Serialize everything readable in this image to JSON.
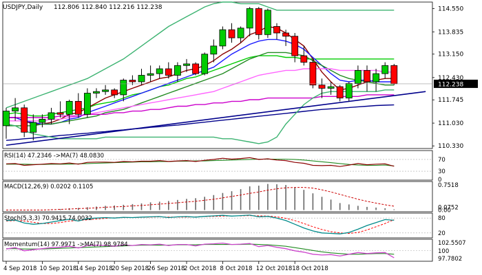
{
  "header": {
    "title": "USDJPY,Daily",
    "ohlc": "112.806 112.840 112.216 112.238"
  },
  "chart_data": {
    "type": "candlestick",
    "symbol": "USDJPY",
    "timeframe": "Daily",
    "last_price": "112.238",
    "ylim": [
      110.25,
      114.75
    ],
    "y_ticks": [
      "114.550",
      "113.835",
      "113.150",
      "112.430",
      "111.745",
      "111.030",
      "110.330"
    ],
    "x_ticks": [
      "4 Sep 2018",
      "10 Sep 2018",
      "14 Sep 2018",
      "20 Sep 2018",
      "26 Sep 2018",
      "2 Oct 2018",
      "8 Oct 2018",
      "12 Oct 2018",
      "18 Oct 2018"
    ],
    "candles": [
      {
        "o": 110.95,
        "h": 111.5,
        "l": 110.55,
        "c": 111.4
      },
      {
        "o": 111.4,
        "h": 111.8,
        "l": 111.1,
        "c": 111.5
      },
      {
        "o": 111.5,
        "h": 111.6,
        "l": 110.6,
        "c": 110.75
      },
      {
        "o": 110.75,
        "h": 111.3,
        "l": 110.5,
        "c": 111.05
      },
      {
        "o": 111.05,
        "h": 111.3,
        "l": 110.9,
        "c": 111.15
      },
      {
        "o": 111.15,
        "h": 111.5,
        "l": 111.0,
        "c": 111.35
      },
      {
        "o": 111.35,
        "h": 111.7,
        "l": 111.2,
        "c": 111.3
      },
      {
        "o": 111.3,
        "h": 111.75,
        "l": 111.0,
        "c": 111.7
      },
      {
        "o": 111.7,
        "h": 111.95,
        "l": 111.2,
        "c": 111.3
      },
      {
        "o": 111.3,
        "h": 112.1,
        "l": 111.2,
        "c": 111.95
      },
      {
        "o": 111.95,
        "h": 112.1,
        "l": 111.8,
        "c": 112.0
      },
      {
        "o": 112.0,
        "h": 112.2,
        "l": 111.9,
        "c": 112.05
      },
      {
        "o": 112.05,
        "h": 112.1,
        "l": 111.8,
        "c": 111.9
      },
      {
        "o": 111.9,
        "h": 112.4,
        "l": 111.7,
        "c": 112.35
      },
      {
        "o": 112.35,
        "h": 112.5,
        "l": 112.2,
        "c": 112.3
      },
      {
        "o": 112.3,
        "h": 112.7,
        "l": 112.2,
        "c": 112.5
      },
      {
        "o": 112.5,
        "h": 112.8,
        "l": 112.3,
        "c": 112.55
      },
      {
        "o": 112.55,
        "h": 112.8,
        "l": 112.4,
        "c": 112.7
      },
      {
        "o": 112.7,
        "h": 112.9,
        "l": 112.4,
        "c": 112.5
      },
      {
        "o": 112.5,
        "h": 112.9,
        "l": 112.3,
        "c": 112.8
      },
      {
        "o": 112.8,
        "h": 113.0,
        "l": 112.6,
        "c": 112.85
      },
      {
        "o": 112.85,
        "h": 112.9,
        "l": 112.5,
        "c": 112.55
      },
      {
        "o": 112.55,
        "h": 113.2,
        "l": 112.5,
        "c": 113.15
      },
      {
        "o": 113.15,
        "h": 113.6,
        "l": 112.9,
        "c": 113.4
      },
      {
        "o": 113.4,
        "h": 114.0,
        "l": 113.3,
        "c": 113.9
      },
      {
        "o": 113.9,
        "h": 114.1,
        "l": 113.5,
        "c": 113.65
      },
      {
        "o": 113.65,
        "h": 114.0,
        "l": 113.5,
        "c": 113.95
      },
      {
        "o": 113.95,
        "h": 114.6,
        "l": 113.7,
        "c": 114.55
      },
      {
        "o": 114.55,
        "h": 114.6,
        "l": 113.6,
        "c": 113.75
      },
      {
        "o": 113.75,
        "h": 114.55,
        "l": 113.65,
        "c": 114.5
      },
      {
        "o": 114.0,
        "h": 114.1,
        "l": 113.6,
        "c": 113.8
      },
      {
        "o": 113.8,
        "h": 113.9,
        "l": 113.4,
        "c": 113.7
      },
      {
        "o": 113.7,
        "h": 113.8,
        "l": 112.9,
        "c": 113.1
      },
      {
        "o": 113.1,
        "h": 113.4,
        "l": 112.8,
        "c": 112.9
      },
      {
        "o": 112.9,
        "h": 113.0,
        "l": 112.1,
        "c": 112.2
      },
      {
        "o": 112.2,
        "h": 112.4,
        "l": 111.8,
        "c": 112.1
      },
      {
        "o": 112.1,
        "h": 112.3,
        "l": 111.9,
        "c": 112.15
      },
      {
        "o": 112.15,
        "h": 112.2,
        "l": 111.7,
        "c": 111.8
      },
      {
        "o": 111.8,
        "h": 112.3,
        "l": 111.7,
        "c": 112.25
      },
      {
        "o": 112.25,
        "h": 112.8,
        "l": 112.1,
        "c": 112.65
      },
      {
        "o": 112.65,
        "h": 112.8,
        "l": 112.0,
        "c": 112.3
      },
      {
        "o": 112.3,
        "h": 112.7,
        "l": 112.0,
        "c": 112.55
      },
      {
        "o": 112.55,
        "h": 112.9,
        "l": 112.4,
        "c": 112.8
      },
      {
        "o": 112.8,
        "h": 112.85,
        "l": 112.2,
        "c": 112.24
      }
    ],
    "overlays": [
      {
        "color": "#00cc00",
        "values": [
          111.3,
          111.35,
          111.3,
          111.25,
          111.25,
          111.3,
          111.35,
          111.4,
          111.45,
          111.5,
          111.6,
          111.65,
          111.7,
          111.8,
          111.9,
          111.95,
          112.05,
          112.15,
          112.2,
          112.3,
          112.4,
          112.45,
          112.55,
          112.65,
          112.75,
          112.85,
          112.95,
          113.05,
          113.1,
          113.1,
          113.1,
          113.05,
          113.05,
          113.0,
          113.0,
          113.0,
          113.0,
          113.0,
          113.0,
          113.0,
          113.0,
          113.0,
          113.0,
          113.0
        ]
      },
      {
        "color": "#8b0000",
        "values": [
          111.2,
          111.2,
          111.1,
          111.0,
          111.0,
          111.05,
          111.15,
          111.3,
          111.35,
          111.5,
          111.65,
          111.8,
          111.9,
          112.0,
          112.1,
          112.2,
          112.3,
          112.4,
          112.45,
          112.55,
          112.65,
          112.7,
          112.8,
          112.95,
          113.15,
          113.3,
          113.5,
          113.75,
          113.85,
          114.0,
          113.95,
          113.8,
          113.6,
          113.4,
          113.0,
          112.6,
          112.3,
          112.05,
          112.1,
          112.2,
          112.3,
          112.35,
          112.4,
          112.4
        ]
      },
      {
        "color": "#1a1aff",
        "values": [
          111.2,
          111.2,
          111.1,
          111.05,
          111.0,
          111.0,
          111.05,
          111.15,
          111.2,
          111.35,
          111.45,
          111.55,
          111.65,
          111.75,
          111.85,
          111.95,
          112.05,
          112.15,
          112.25,
          112.35,
          112.45,
          112.55,
          112.65,
          112.75,
          112.95,
          113.15,
          113.3,
          113.45,
          113.55,
          113.6,
          113.6,
          113.55,
          113.45,
          113.3,
          113.05,
          112.8,
          112.55,
          112.35,
          112.3,
          112.35,
          112.35,
          112.3,
          112.3,
          112.3
        ]
      },
      {
        "color": "#228b22",
        "values": [
          110.95,
          110.95,
          110.95,
          110.95,
          111.0,
          111.0,
          111.05,
          111.1,
          111.15,
          111.2,
          111.25,
          111.35,
          111.4,
          111.45,
          111.55,
          111.65,
          111.75,
          111.85,
          111.95,
          112.05,
          112.15,
          112.25,
          112.35,
          112.45,
          112.55,
          112.7,
          112.85,
          113.0,
          113.1,
          113.2,
          113.2,
          113.2,
          113.15,
          113.1,
          112.95,
          112.8,
          112.65,
          112.5,
          112.4,
          112.35,
          112.3,
          112.25,
          112.2,
          112.2
        ]
      },
      {
        "color": "#ff66ff",
        "values": [
          111.1,
          111.1,
          111.1,
          111.1,
          111.1,
          111.15,
          111.15,
          111.2,
          111.25,
          111.3,
          111.35,
          111.4,
          111.45,
          111.5,
          111.55,
          111.6,
          111.65,
          111.7,
          111.75,
          111.8,
          111.85,
          111.9,
          111.95,
          112.0,
          112.1,
          112.2,
          112.3,
          112.4,
          112.5,
          112.55,
          112.6,
          112.65,
          112.65,
          112.7,
          112.7,
          112.7,
          112.7,
          112.65,
          112.65,
          112.65,
          112.65,
          112.65,
          112.6,
          112.6
        ]
      },
      {
        "color": "#cc00cc",
        "values": [
          111.2,
          111.2,
          111.2,
          111.2,
          111.2,
          111.2,
          111.25,
          111.25,
          111.25,
          111.3,
          111.3,
          111.3,
          111.35,
          111.35,
          111.4,
          111.4,
          111.45,
          111.45,
          111.5,
          111.55,
          111.55,
          111.6,
          111.6,
          111.65,
          111.65,
          111.7,
          111.7,
          111.75,
          111.75,
          111.8,
          111.8,
          111.8,
          111.8,
          111.8,
          111.8,
          111.85,
          111.85,
          111.85,
          111.85,
          111.85,
          111.9,
          111.9,
          111.9,
          111.9
        ]
      },
      {
        "color": "#00008b",
        "values": [
          110.5,
          110.52,
          110.55,
          110.57,
          110.6,
          110.62,
          110.65,
          110.67,
          110.7,
          110.72,
          110.75,
          110.77,
          110.8,
          110.82,
          110.85,
          110.87,
          110.9,
          110.92,
          110.95,
          110.97,
          111.0,
          111.03,
          111.06,
          111.09,
          111.12,
          111.15,
          111.18,
          111.21,
          111.24,
          111.27,
          111.3,
          111.33,
          111.36,
          111.39,
          111.42,
          111.45,
          111.47,
          111.49,
          111.51,
          111.53,
          111.55,
          111.57,
          111.58,
          111.59
        ]
      },
      {
        "color": "#3cb371",
        "values": [
          111.0,
          110.95,
          110.8,
          110.7,
          110.65,
          110.6,
          110.55,
          110.55,
          110.55,
          110.55,
          110.55,
          110.6,
          110.6,
          110.6,
          110.6,
          110.6,
          110.6,
          110.6,
          110.6,
          110.6,
          110.6,
          110.6,
          110.6,
          110.6,
          110.55,
          110.55,
          110.5,
          110.45,
          110.4,
          110.45,
          110.6,
          111.0,
          111.3,
          111.6,
          111.8,
          111.95,
          112.0,
          112.0,
          112.0,
          112.0,
          112.0,
          112.0,
          112.05,
          112.05
        ]
      },
      {
        "color": "#3cb371",
        "values": [
          111.5,
          111.6,
          111.7,
          111.8,
          111.9,
          112.0,
          112.1,
          112.2,
          112.3,
          112.4,
          112.55,
          112.7,
          112.85,
          113.0,
          113.2,
          113.4,
          113.6,
          113.8,
          114.0,
          114.15,
          114.3,
          114.45,
          114.6,
          114.7,
          114.75,
          114.75,
          114.7,
          114.7,
          114.7,
          114.6,
          114.5,
          114.5,
          114.5,
          114.5,
          114.5,
          114.5,
          114.5,
          114.5,
          114.5,
          114.5,
          114.5,
          114.5,
          114.5,
          114.5
        ]
      }
    ],
    "trendline": {
      "color": "#00008b",
      "from": [
        0,
        110.35
      ],
      "to": [
        46.5,
        112.0
      ]
    },
    "indicators": {
      "rsi": {
        "label": "RSI(14) 47.2346 ->MA(7) 48.0830",
        "ylim": [
          0,
          100
        ],
        "ticks": [
          "70",
          "30",
          "0"
        ],
        "rsi_values": [
          55,
          56,
          50,
          52,
          54,
          56,
          55,
          58,
          54,
          60,
          61,
          61,
          60,
          63,
          62,
          64,
          64,
          66,
          63,
          65,
          66,
          63,
          67,
          70,
          74,
          71,
          73,
          76,
          70,
          72,
          68,
          66,
          60,
          57,
          50,
          49,
          50,
          46,
          51,
          56,
          52,
          54,
          55,
          47
        ],
        "ma_values": [
          54,
          54,
          54,
          53,
          53,
          54,
          54,
          54,
          55,
          56,
          57,
          58,
          59,
          60,
          61,
          62,
          62,
          63,
          63,
          64,
          64,
          65,
          65,
          66,
          67,
          68,
          69,
          70,
          71,
          71,
          71,
          71,
          70,
          68,
          65,
          62,
          59,
          56,
          53,
          51,
          50,
          50,
          51,
          48
        ]
      },
      "macd": {
        "label": "MACD(12,26,9) 0.0202 0.1105",
        "ylim": [
          -0.05,
          0.82
        ],
        "ticks": [
          "0.7518",
          "0.0752",
          "0.00"
        ],
        "histogram": [
          0.0,
          0.0,
          0.0,
          0.0,
          0.0,
          0.02,
          0.03,
          0.05,
          0.06,
          0.08,
          0.1,
          0.12,
          0.13,
          0.15,
          0.17,
          0.19,
          0.22,
          0.24,
          0.26,
          0.29,
          0.32,
          0.34,
          0.38,
          0.43,
          0.49,
          0.54,
          0.6,
          0.68,
          0.7,
          0.75,
          0.74,
          0.72,
          0.65,
          0.58,
          0.48,
          0.38,
          0.3,
          0.2,
          0.16,
          0.12,
          0.09,
          0.07,
          0.05,
          0.02
        ],
        "signal": [
          0.0,
          0.0,
          0.0,
          0.0,
          0.0,
          0.01,
          0.02,
          0.03,
          0.04,
          0.05,
          0.06,
          0.08,
          0.09,
          0.1,
          0.12,
          0.13,
          0.15,
          0.17,
          0.19,
          0.21,
          0.23,
          0.25,
          0.28,
          0.31,
          0.35,
          0.39,
          0.43,
          0.48,
          0.52,
          0.57,
          0.61,
          0.64,
          0.65,
          0.65,
          0.63,
          0.58,
          0.52,
          0.45,
          0.38,
          0.31,
          0.25,
          0.2,
          0.15,
          0.11
        ]
      },
      "stoch": {
        "label": "Stoch(5,3,3) 70.9415 74.0032",
        "ylim": [
          0,
          100
        ],
        "ticks": [
          "80",
          "20"
        ],
        "k_values": [
          70,
          72,
          60,
          55,
          58,
          64,
          70,
          75,
          68,
          78,
          80,
          82,
          80,
          83,
          82,
          84,
          85,
          86,
          82,
          85,
          86,
          84,
          87,
          89,
          91,
          88,
          90,
          92,
          85,
          87,
          80,
          70,
          55,
          40,
          28,
          20,
          18,
          16,
          22,
          35,
          50,
          62,
          74,
          71
        ],
        "d_values": [
          68,
          70,
          68,
          63,
          58,
          58,
          62,
          68,
          70,
          73,
          76,
          79,
          81,
          82,
          82,
          83,
          84,
          85,
          84,
          84,
          84,
          85,
          86,
          87,
          88,
          89,
          89,
          90,
          89,
          88,
          85,
          79,
          70,
          58,
          45,
          34,
          25,
          20,
          18,
          22,
          32,
          45,
          58,
          74
        ]
      },
      "momentum": {
        "label": "Momentum(14) 97.9971 ->MA(7) 98.9784",
        "ylim": [
          97.0,
          103.3
        ],
        "ticks": [
          "102.5507",
          "100",
          "97.7802"
        ],
        "mom_values": [
          100.5,
          100.9,
          100.0,
          100.3,
          100.6,
          100.9,
          101.0,
          101.3,
          100.8,
          101.5,
          101.6,
          101.5,
          101.3,
          101.7,
          101.5,
          101.8,
          101.7,
          101.9,
          101.5,
          101.8,
          101.8,
          101.4,
          101.9,
          102.0,
          102.2,
          101.8,
          101.9,
          102.1,
          101.2,
          101.5,
          101.0,
          100.6,
          100.0,
          99.6,
          99.0,
          98.8,
          98.9,
          98.5,
          99.0,
          99.5,
          99.2,
          99.4,
          99.5,
          98.0
        ],
        "ma_values": [
          100.6,
          100.6,
          100.5,
          100.5,
          100.5,
          100.6,
          100.7,
          100.8,
          100.9,
          101.0,
          101.1,
          101.2,
          101.3,
          101.4,
          101.5,
          101.6,
          101.6,
          101.6,
          101.6,
          101.7,
          101.7,
          101.7,
          101.8,
          101.8,
          101.8,
          101.8,
          101.8,
          101.9,
          101.8,
          101.7,
          101.5,
          101.3,
          100.9,
          100.5,
          100.1,
          99.7,
          99.4,
          99.2,
          99.0,
          99.0,
          99.1,
          99.2,
          99.2,
          99.0
        ]
      }
    }
  },
  "colors": {
    "up": "#00cc00",
    "down": "#ff0000",
    "outline": "#000000",
    "price_tag_bg": "#000000",
    "price_tag_fg": "#ffffff",
    "rsi_line": "#8b0000",
    "rsi_ma": "#228b22",
    "macd_hist": "#666666",
    "macd_signal": "#cc0000",
    "stoch_k": "#008b8b",
    "stoch_d": "#ff0000",
    "mom_line": "#cc44cc",
    "mom_ma": "#228b22"
  }
}
